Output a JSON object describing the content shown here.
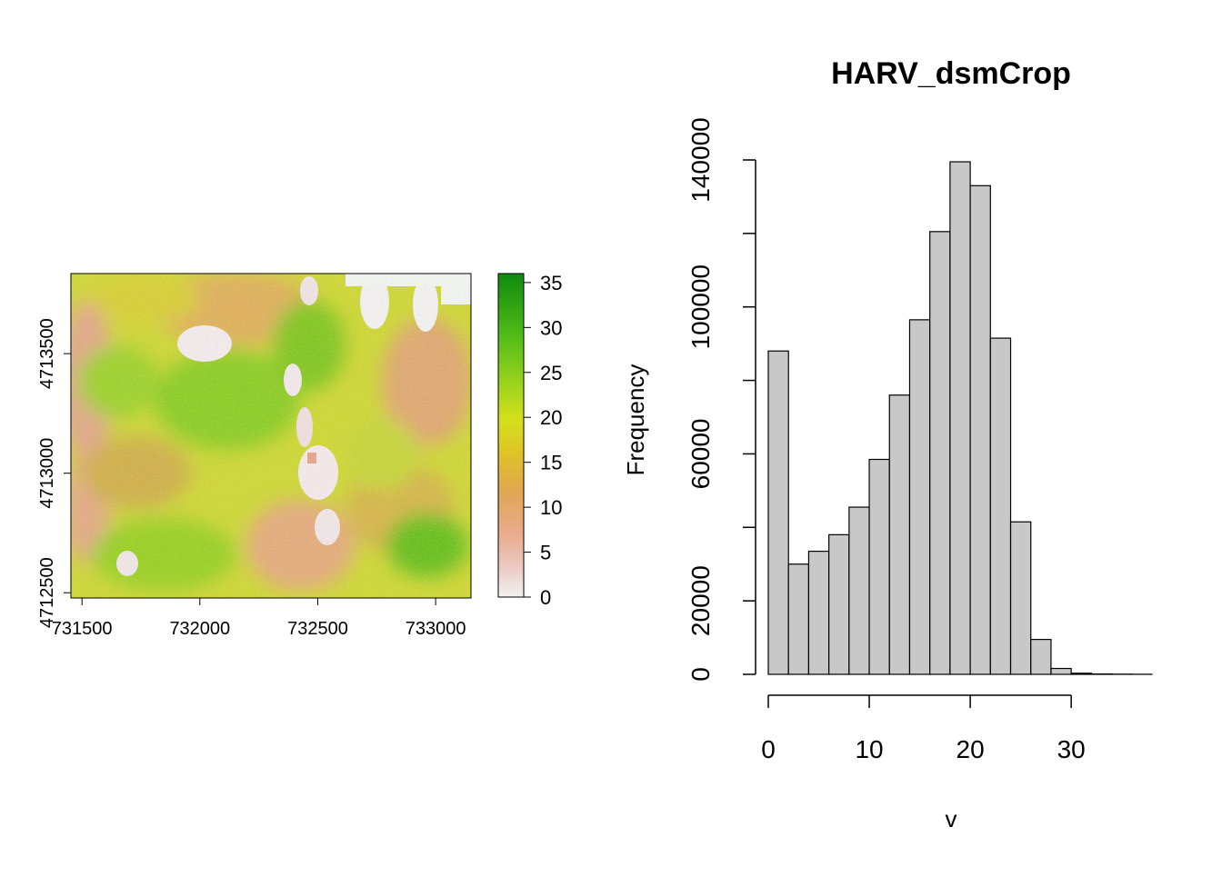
{
  "chart_data": [
    {
      "type": "heatmap",
      "title": "",
      "xlabel": "",
      "ylabel": "",
      "xlim": [
        731453,
        733150
      ],
      "ylim": [
        4712478,
        4713835
      ],
      "x_ticks": [
        "731500",
        "732000",
        "732500",
        "733000"
      ],
      "x_tick_values": [
        731500,
        732000,
        732500,
        733000
      ],
      "y_ticks": [
        "4712500",
        "4713000",
        "4713500"
      ],
      "y_tick_values": [
        4712500,
        4713000,
        4713500
      ],
      "legend": {
        "placement": "right",
        "range": [
          0,
          36
        ],
        "ticks": [
          "0",
          "5",
          "10",
          "15",
          "20",
          "25",
          "30",
          "35"
        ],
        "tick_values": [
          0,
          5,
          10,
          15,
          20,
          25,
          30,
          35
        ],
        "colors": [
          "#f2f2f2",
          "#ebb69d",
          "#e3a86f",
          "#dcb234",
          "#e6e61a",
          "#a8d81c",
          "#5cc11a",
          "#20a31a",
          "#0e8a0e"
        ]
      },
      "grid": false
    },
    {
      "type": "bar",
      "title": "HARV_dsmCrop",
      "xlabel": "v",
      "ylabel": "Frequency",
      "bin_width": 2,
      "bin_starts": [
        0,
        2,
        4,
        6,
        8,
        10,
        12,
        14,
        16,
        18,
        20,
        22,
        24,
        26,
        28,
        30,
        32,
        34,
        36
      ],
      "values": [
        88000,
        30000,
        33500,
        38000,
        45500,
        58500,
        76000,
        96500,
        120500,
        139500,
        133000,
        91500,
        41500,
        9500,
        1600,
        300,
        100,
        50,
        20
      ],
      "xlim": [
        0,
        38
      ],
      "ylim": [
        0,
        140000
      ],
      "x_ticks": [
        "0",
        "10",
        "20",
        "30"
      ],
      "x_tick_values": [
        0,
        10,
        20,
        30
      ],
      "y_ticks": [
        "0",
        "20000",
        "60000",
        "100000",
        "140000"
      ],
      "y_tick_values": [
        0,
        20000,
        60000,
        100000,
        140000
      ],
      "y_minor_values": [
        40000,
        80000,
        120000
      ],
      "bar_color": "#c8c8c8",
      "grid": false
    }
  ]
}
